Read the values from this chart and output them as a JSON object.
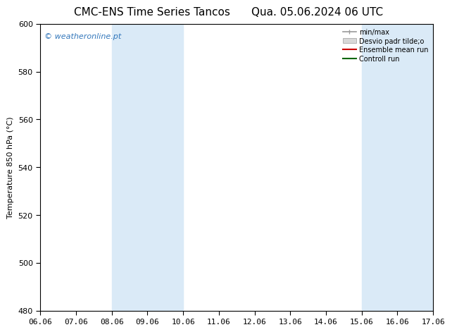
{
  "title_left": "CMC-ENS Time Series Tancos",
  "title_right": "Qua. 05.06.2024 06 UTC",
  "ylabel": "Temperature 850 hPa (°C)",
  "xlim": [
    0,
    11
  ],
  "ylim": [
    480,
    600
  ],
  "yticks": [
    480,
    500,
    520,
    540,
    560,
    580,
    600
  ],
  "xtick_labels": [
    "06.06",
    "07.06",
    "08.06",
    "09.06",
    "10.06",
    "11.06",
    "12.06",
    "13.06",
    "14.06",
    "15.06",
    "16.06",
    "17.06"
  ],
  "shaded_bands": [
    {
      "x_start": 2,
      "x_end": 4,
      "color": "#daeaf7"
    },
    {
      "x_start": 9,
      "x_end": 11,
      "color": "#daeaf7"
    }
  ],
  "watermark_text": "© weatheronline.pt",
  "watermark_color": "#3377bb",
  "legend_labels": [
    "min/max",
    "Desvio padr tilde;o",
    "Ensemble mean run",
    "Controll run"
  ],
  "bg_color": "#ffffff",
  "plot_bg_color": "#ffffff",
  "title_fontsize": 11,
  "axis_fontsize": 8,
  "tick_fontsize": 8
}
